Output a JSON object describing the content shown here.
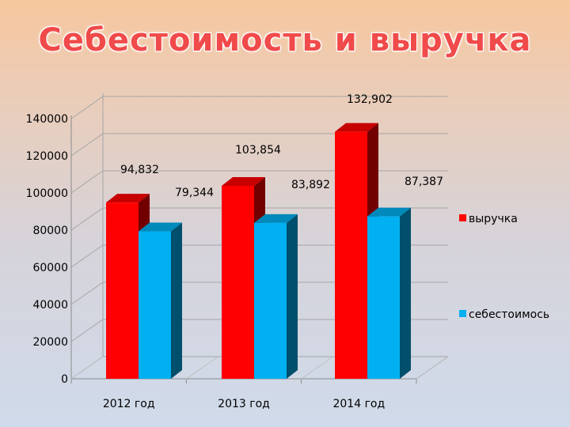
{
  "chart_data": {
    "type": "bar",
    "title": "Себестоимость и выручка",
    "categories": [
      "2012 год",
      "2013 год",
      "2014 год"
    ],
    "series": [
      {
        "name": "выручка",
        "values": [
          94832,
          103854,
          132902
        ],
        "labels": [
          "94,832",
          "103,854",
          "132,902"
        ],
        "color": "#ff0000"
      },
      {
        "name": "себестоимось",
        "values": [
          79344,
          83892,
          87387
        ],
        "labels": [
          "79,344",
          "83,892",
          "87,387"
        ],
        "color": "#00b0f0"
      }
    ],
    "yticks": [
      "0",
      "20000",
      "40000",
      "60000",
      "80000",
      "100000",
      "120000",
      "140000"
    ],
    "ylim": [
      0,
      140000
    ],
    "legend_position": "right",
    "grid": true
  }
}
